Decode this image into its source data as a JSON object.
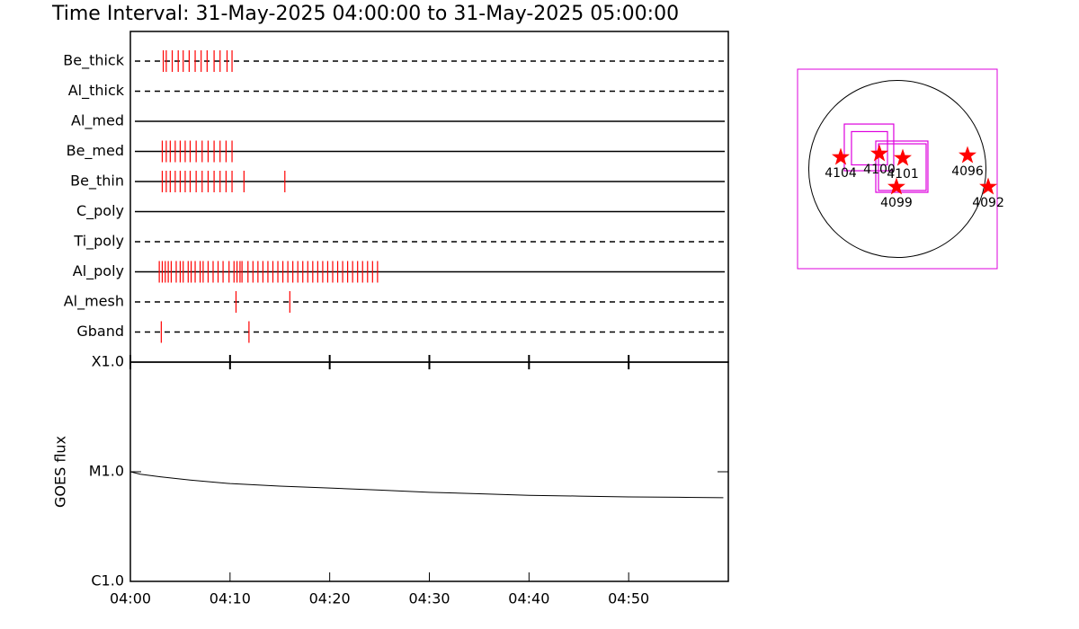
{
  "chart_data": [
    {
      "type": "timeline",
      "title": "Time Interval: 31-May-2025 04:00:00 to 31-May-2025 05:00:00",
      "xlim": [
        0,
        60
      ],
      "color": "#ff0000",
      "rows": [
        {
          "name": "Be_thick",
          "style": "dashed",
          "events": [
            3.3,
            3.6,
            4.2,
            4.8,
            5.3,
            5.9,
            6.5,
            7.1,
            7.7,
            8.4,
            9.0,
            9.7,
            10.2
          ]
        },
        {
          "name": "Al_thick",
          "style": "dashed",
          "events": []
        },
        {
          "name": "Al_med",
          "style": "solid",
          "events": []
        },
        {
          "name": "Be_med",
          "style": "solid",
          "events": [
            3.2,
            3.6,
            4.0,
            4.5,
            5.0,
            5.5,
            6.0,
            6.6,
            7.2,
            7.8,
            8.4,
            9.0,
            9.6,
            10.2
          ]
        },
        {
          "name": "Be_thin",
          "style": "solid",
          "events": [
            3.2,
            3.6,
            4.0,
            4.5,
            5.0,
            5.5,
            6.0,
            6.6,
            7.2,
            7.8,
            8.4,
            9.0,
            9.6,
            10.2,
            11.4,
            15.5
          ]
        },
        {
          "name": "C_poly",
          "style": "solid",
          "events": []
        },
        {
          "name": "Ti_poly",
          "style": "dashed",
          "events": []
        },
        {
          "name": "Al_poly",
          "style": "solid",
          "events": [
            2.9,
            3.2,
            3.5,
            3.8,
            4.1,
            4.6,
            5.0,
            5.3,
            5.8,
            6.1,
            6.5,
            7.0,
            7.3,
            7.8,
            8.3,
            8.8,
            9.3,
            9.9,
            10.4,
            10.7,
            11.0,
            11.2,
            11.8,
            12.3,
            12.8,
            13.3,
            13.8,
            14.3,
            14.8,
            15.3,
            15.8,
            16.3,
            16.8,
            17.3,
            17.8,
            18.3,
            18.8,
            19.3,
            19.8,
            20.3,
            20.8,
            21.3,
            21.8,
            22.3,
            22.8,
            23.3,
            23.8,
            24.3,
            24.8
          ]
        },
        {
          "name": "Al_mesh",
          "style": "dashed",
          "events": [
            10.6,
            16.0
          ]
        },
        {
          "name": "Gband",
          "style": "dashed",
          "events": [
            3.1,
            11.9
          ]
        }
      ]
    },
    {
      "type": "line",
      "y_label": "GOES flux",
      "log_scale": true,
      "color": "#000000",
      "x": [
        0,
        1,
        3,
        6,
        10,
        15,
        20,
        25,
        30,
        35,
        40,
        45,
        50,
        55,
        59.5
      ],
      "values": [
        1e-05,
        9.5e-06,
        9e-06,
        8.4e-06,
        7.8e-06,
        7.4e-06,
        7.1e-06,
        6.8e-06,
        6.5e-06,
        6.3e-06,
        6.1e-06,
        6e-06,
        5.9e-06,
        5.85e-06,
        5.8e-06
      ],
      "xlim": [
        0,
        60
      ],
      "xticks": [
        {
          "value": 0,
          "label": "04:00"
        },
        {
          "value": 10,
          "label": "04:10"
        },
        {
          "value": 20,
          "label": "04:20"
        },
        {
          "value": 30,
          "label": "04:30"
        },
        {
          "value": 40,
          "label": "04:40"
        },
        {
          "value": 50,
          "label": "04:50"
        }
      ],
      "ylim": [
        1e-06,
        0.0001
      ],
      "yticks": [
        {
          "value": 0.0001,
          "label": "X1.0"
        },
        {
          "value": 1e-05,
          "label": "M1.0"
        },
        {
          "value": 1e-06,
          "label": "C1.0"
        }
      ]
    },
    {
      "type": "map",
      "xlim": [
        -1070,
        1070
      ],
      "ylim": [
        -1070,
        1070
      ],
      "limb_radius": 950,
      "color": "#ff0000",
      "fov_color": "#dd00dd",
      "points": [
        {
          "name": "4104",
          "x": -607,
          "y": 125
        },
        {
          "name": "4100",
          "x": -193,
          "y": 164
        },
        {
          "name": "4101",
          "x": 58,
          "y": 116
        },
        {
          "name": "4099",
          "x": -10,
          "y": -193
        },
        {
          "name": "4096",
          "x": 752,
          "y": 145
        },
        {
          "name": "4092",
          "x": 974,
          "y": -193
        }
      ],
      "fov": [
        {
          "x": -304,
          "y": 231,
          "width": 530,
          "height": 501
        },
        {
          "x": -299,
          "y": 222,
          "width": 386,
          "height": 357
        },
        {
          "x": 48,
          "y": 24,
          "width": 559,
          "height": 550
        },
        {
          "x": 53,
          "y": 19,
          "width": 511,
          "height": 501
        }
      ]
    }
  ]
}
